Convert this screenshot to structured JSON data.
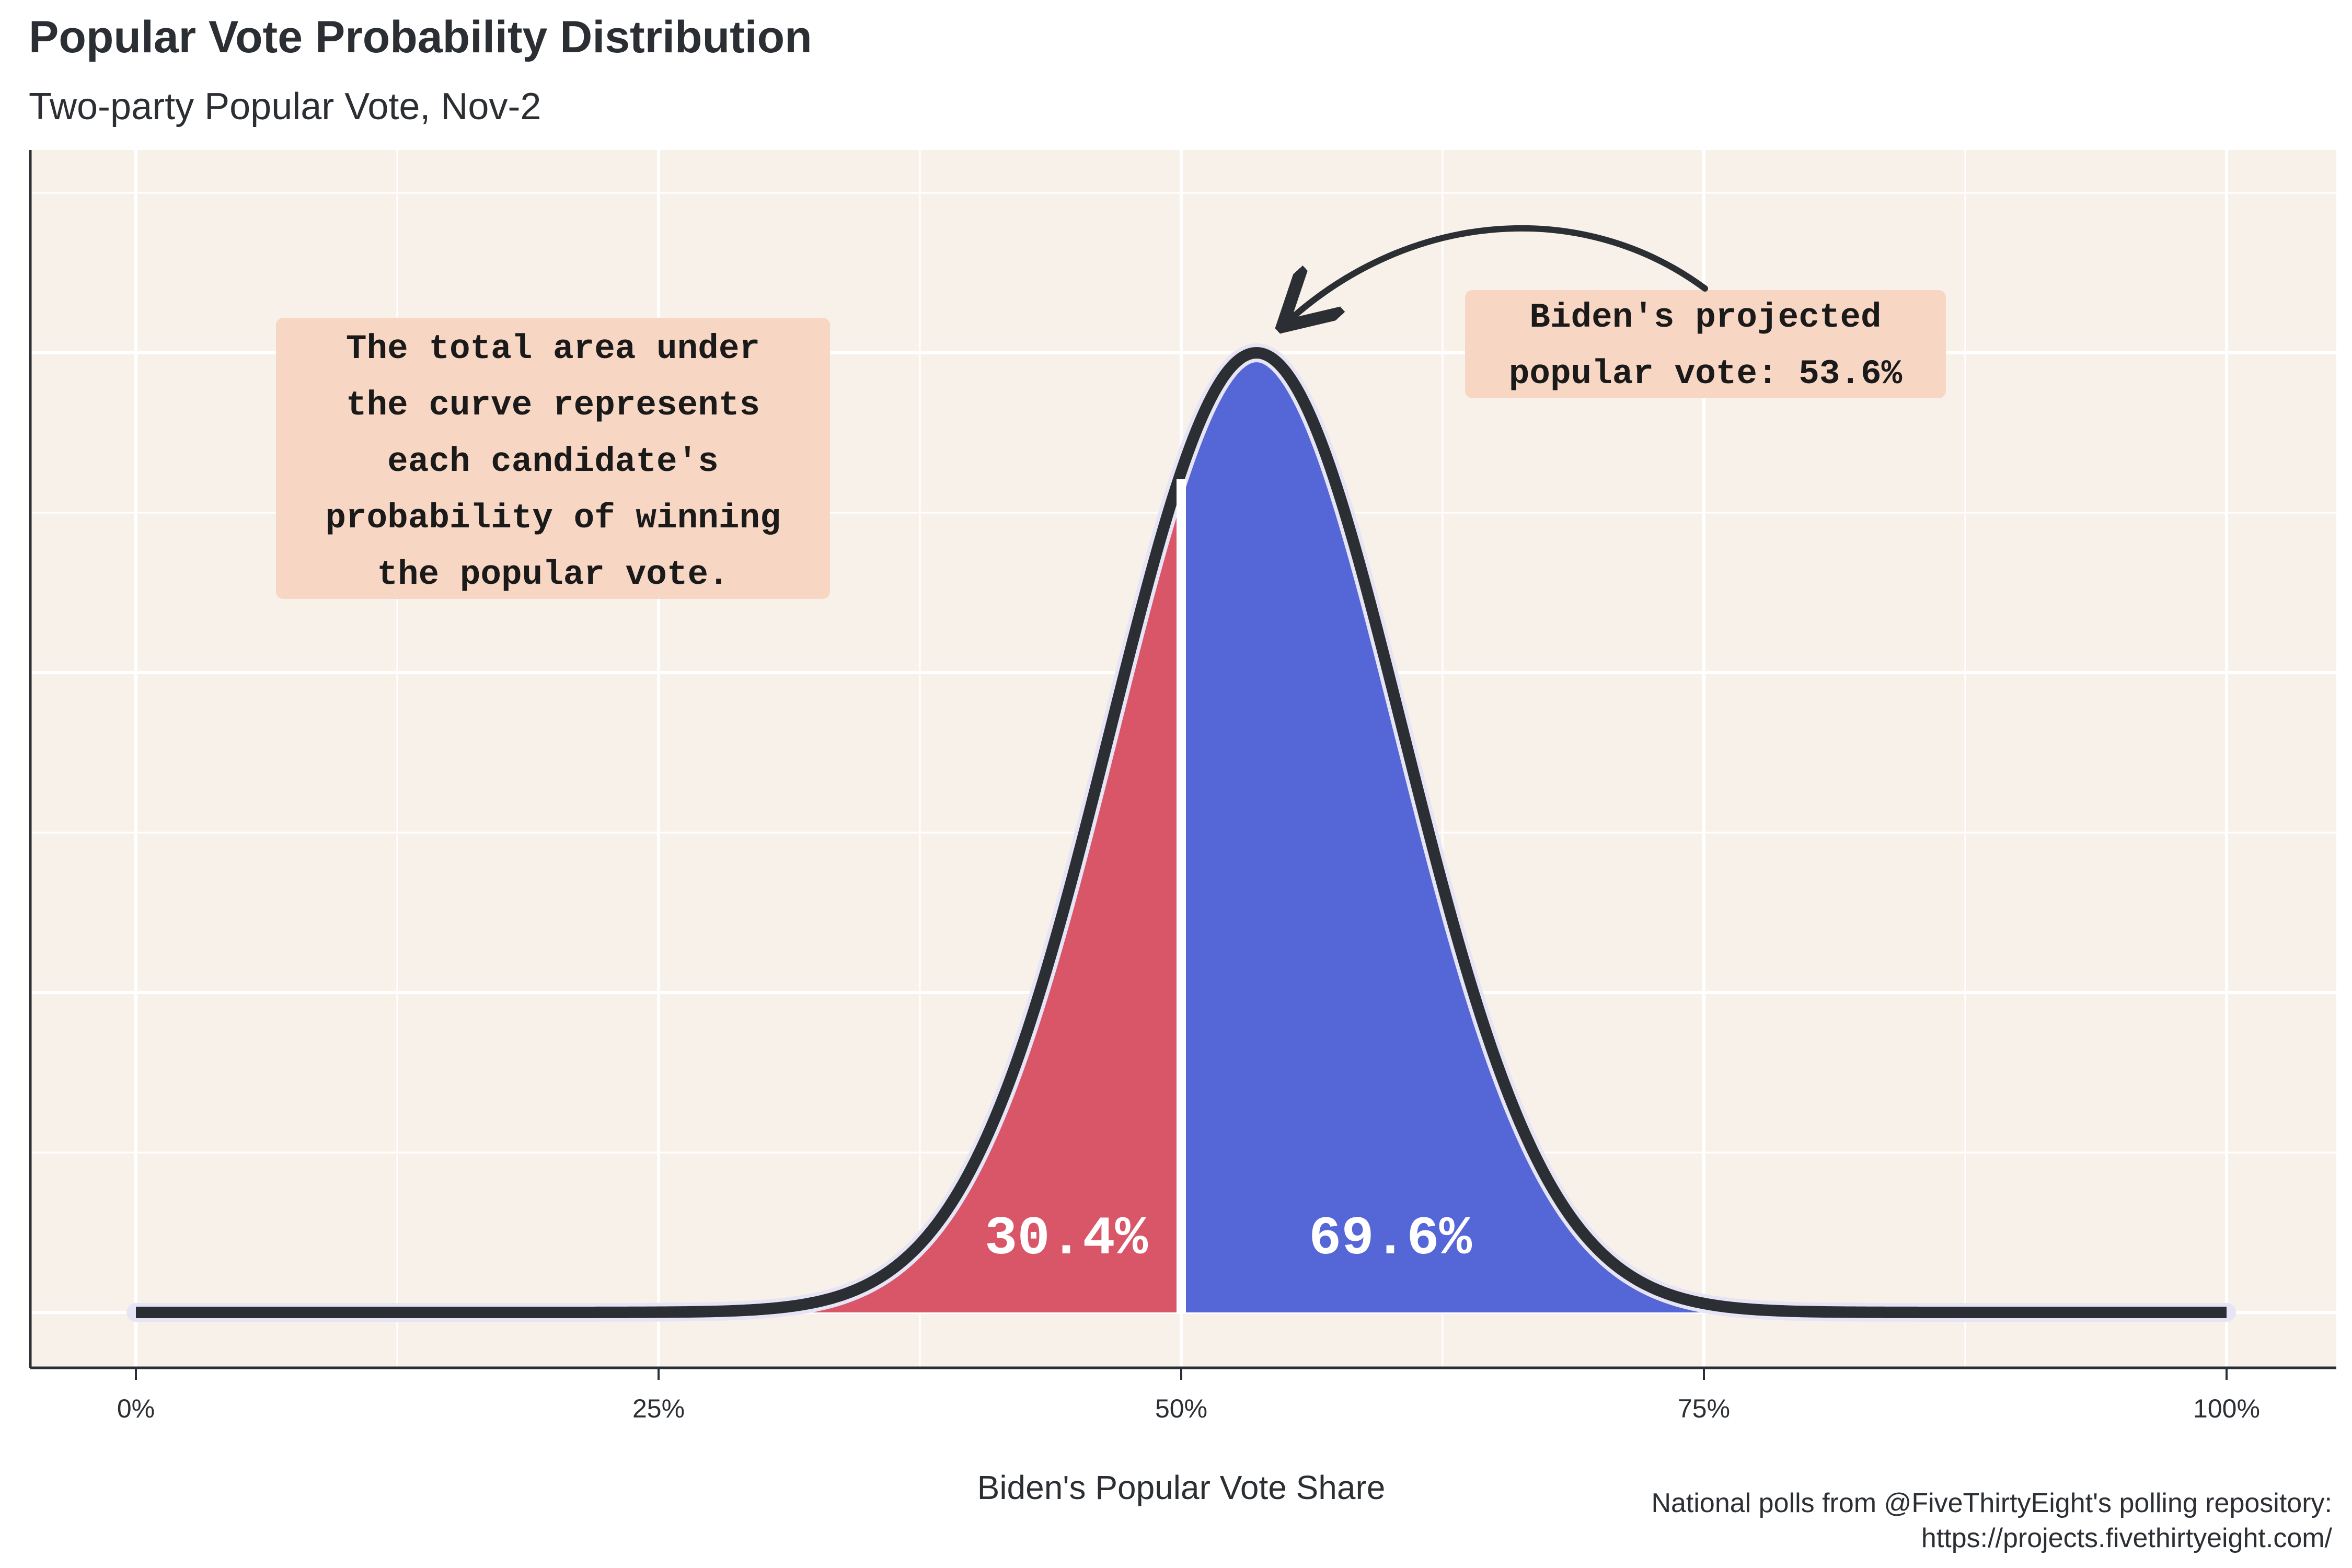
{
  "title": "Popular Vote Probability Distribution",
  "subtitle": "Two-party Popular Vote, Nov-2",
  "caption_lines": [
    "National polls from @FiveThirtyEight's polling repository:",
    "https://projects.fivethirtyeight.com/"
  ],
  "colors": {
    "panel_bg": "#f8f1ea",
    "grid": "#ffffff",
    "trump_fill": "#d95668",
    "biden_fill": "#5566d6",
    "curve": "#2b2f33",
    "annotation_bg": "#f7d6c3"
  },
  "annotations": {
    "area_note_lines": [
      "The total area under",
      "the curve represents",
      "each candidate's",
      "probability of winning",
      "the popular vote."
    ],
    "projection_lines": [
      "Biden's projected",
      "popular vote: 53.6%"
    ]
  },
  "chart_data": {
    "type": "area",
    "xlabel": "Biden's Popular Vote Share",
    "ylabel": "",
    "xlim": [
      0,
      100
    ],
    "x_ticks": [
      "0%",
      "25%",
      "50%",
      "75%",
      "100%"
    ],
    "distribution": {
      "family": "normal",
      "mean": 53.6,
      "sd": 7.0
    },
    "split_at": 50,
    "regions": [
      {
        "side": "below_50",
        "probability_label": "30.4%"
      },
      {
        "side": "above_50",
        "probability_label": "69.6%"
      }
    ],
    "projected_value": 53.6,
    "grid": true,
    "legend": "none"
  }
}
